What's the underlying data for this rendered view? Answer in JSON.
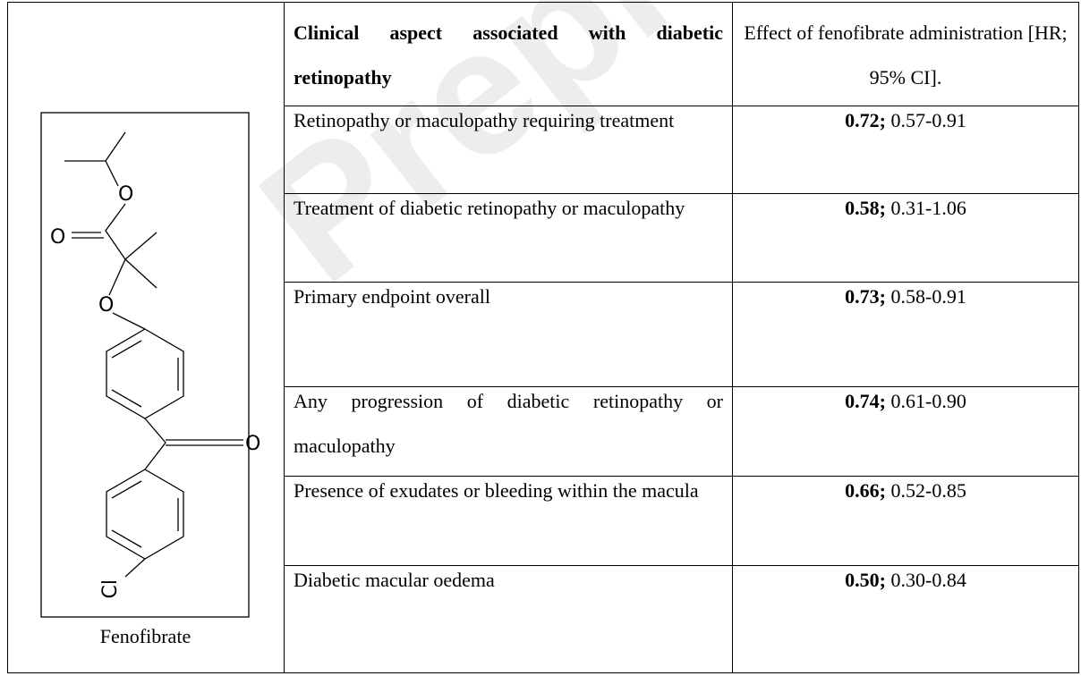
{
  "table": {
    "headers": [
      "Clinical aspect associated with diabetic retinopathy",
      "Effect of fenofibrate administration [HR; 95% CI]."
    ],
    "rows": [
      {
        "aspect": "Retinopathy or maculopathy requiring treatment",
        "hr": "0.72;",
        "ci": "0.57-0.91"
      },
      {
        "aspect": "Treatment of diabetic retinopathy or maculopathy",
        "hr": "0.58;",
        "ci": "0.31-1.06"
      },
      {
        "aspect": "Primary endpoint overall",
        "hr": "0.73;",
        "ci": "0.58-0.91"
      },
      {
        "aspect": "Any progression of diabetic retinopathy or maculopathy",
        "hr": "0.74;",
        "ci": "0.61-0.90"
      },
      {
        "aspect": "Presence of exudates or bleeding within the macula",
        "hr": "0.66;",
        "ci": "0.52-0.85"
      },
      {
        "aspect": "Diabetic macular oedema",
        "hr": "0.50;",
        "ci": "0.30-0.84"
      }
    ]
  },
  "structure": {
    "atoms": [
      "O",
      "O",
      "O",
      "O",
      "Cl"
    ],
    "caption": "Fenofibrate"
  },
  "watermark": "Prepr"
}
